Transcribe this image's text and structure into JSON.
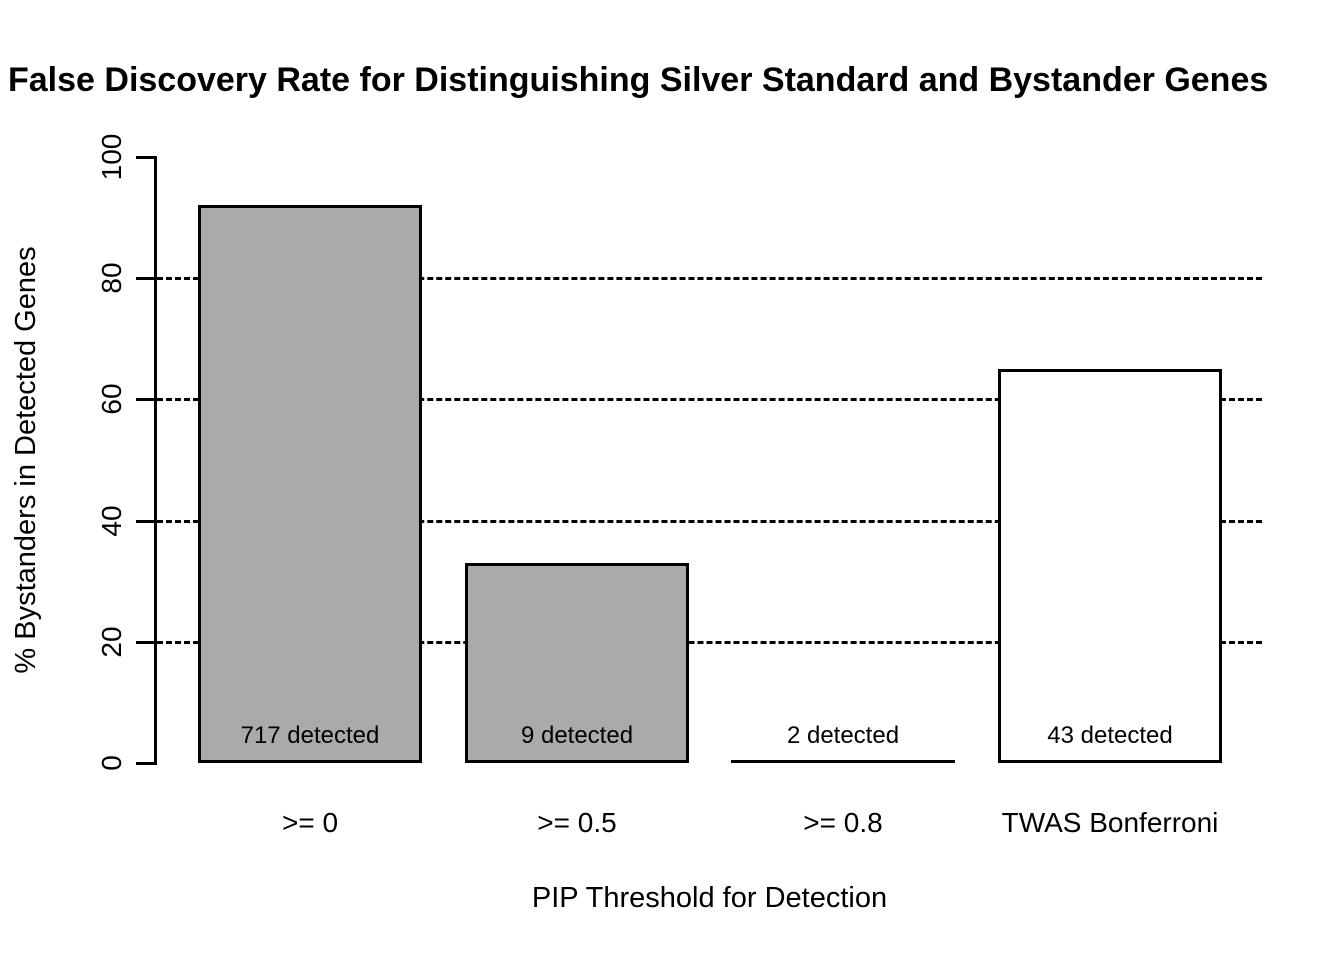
{
  "chart_data": {
    "type": "bar",
    "title": "False Discovery Rate for Distinguishing Silver Standard and Bystander Genes",
    "xlabel": "PIP Threshold for Detection",
    "ylabel": "% Bystanders in Detected Genes",
    "ylim": [
      0,
      100
    ],
    "yticks": [
      0,
      20,
      40,
      60,
      80,
      100
    ],
    "gridlines": {
      "style": "dashed",
      "values": [
        20,
        40,
        60,
        80
      ]
    },
    "legend": "none",
    "categories": [
      ">= 0",
      ">= 0.5",
      ">= 0.8",
      "TWAS Bonferroni"
    ],
    "values": [
      92,
      33,
      0,
      65
    ],
    "bar_labels": [
      "717 detected",
      "9 detected",
      "2 detected",
      "43 detected"
    ],
    "bar_colors": [
      "#AAAAAA",
      "#AAAAAA",
      "#AAAAAA",
      "#FFFFFF"
    ],
    "bar_border_color": "#000000",
    "text_color": "#000000",
    "background_color": "#FFFFFF"
  }
}
